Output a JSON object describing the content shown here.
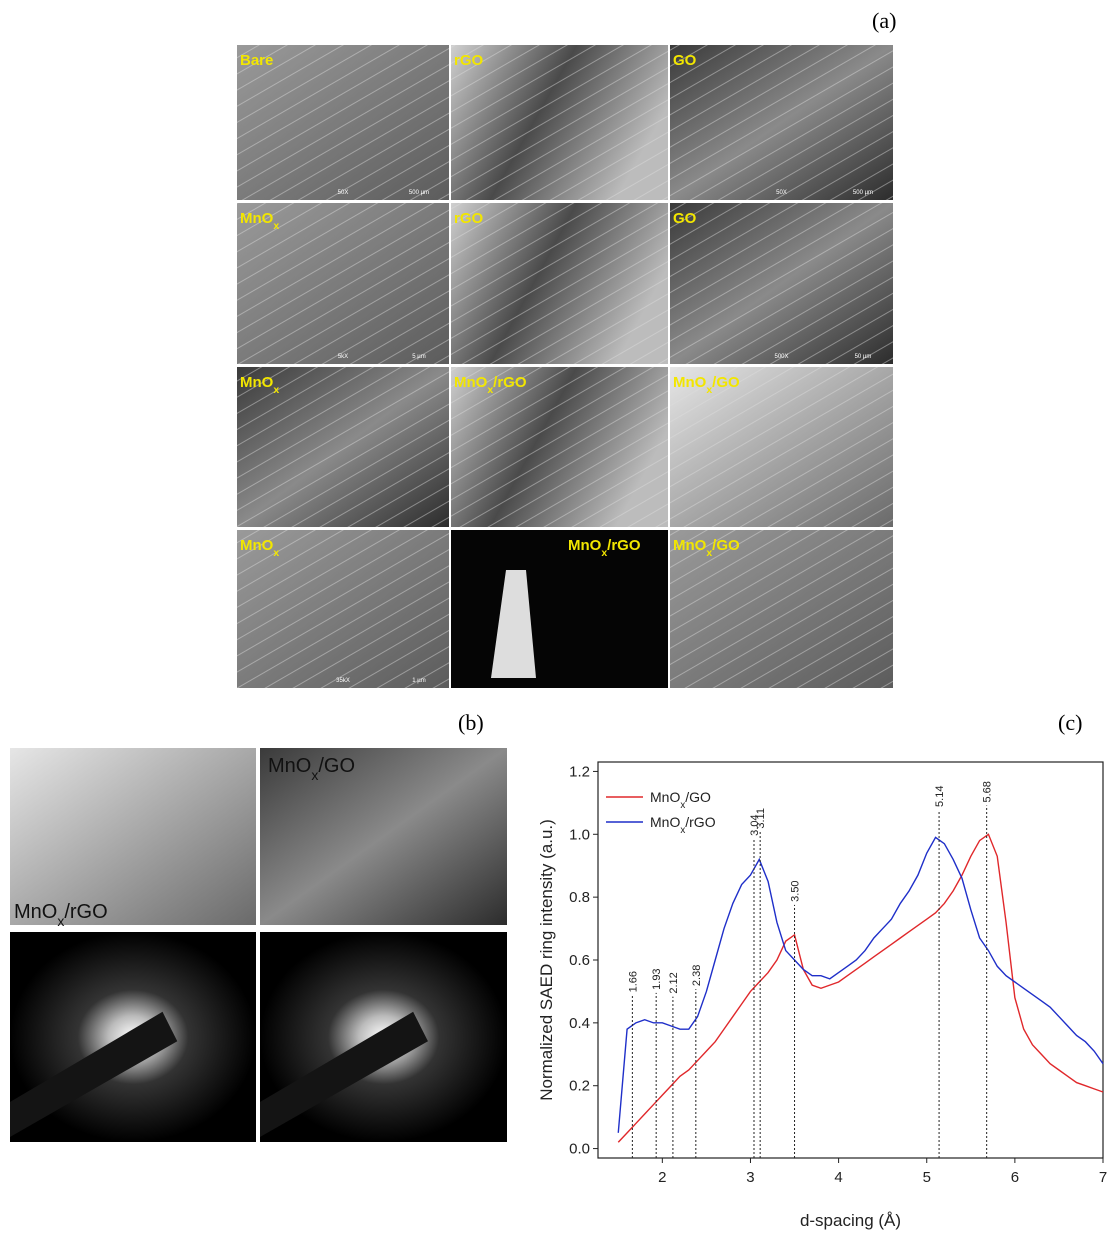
{
  "panel_a": {
    "label": "(a)",
    "images": [
      {
        "label": "Bare",
        "mag": "50X",
        "scale": "500 µm"
      },
      {
        "label": "rGO"
      },
      {
        "label": "GO",
        "mag": "50X",
        "scale": "500 µm"
      },
      {
        "label": "MnOx",
        "mag": "5kX",
        "scale": "5 µm"
      },
      {
        "label": "rGO"
      },
      {
        "label": "GO",
        "mag": "500X",
        "scale": "50 µm"
      },
      {
        "label": "MnOx"
      },
      {
        "label": "MnOx/rGO"
      },
      {
        "label": "MnOx/GO"
      },
      {
        "label": "MnOx",
        "mag": "35kX",
        "scale": "1 µm"
      },
      {
        "label": "MnOx/rGO"
      },
      {
        "label": "MnOx/GO"
      }
    ]
  },
  "panel_b": {
    "label": "(b)",
    "images": [
      {
        "label": "MnOx/rGO"
      },
      {
        "label": "MnOx/GO"
      }
    ]
  },
  "panel_c": {
    "label": "(c)"
  },
  "chart_data": {
    "type": "line",
    "x_label": "d-spacing (Å)",
    "y_label": "Normalized SAED ring intensity (a.u.)",
    "xlim": [
      1.27,
      7
    ],
    "ylim": [
      -0.03,
      1.23
    ],
    "xticks": [
      2,
      3,
      4,
      5,
      6,
      7
    ],
    "yticks": [
      {
        "value": 0,
        "label": "0.0"
      },
      0.2,
      0.4,
      0.6,
      0.8,
      {
        "value": 1,
        "label": "1.0"
      },
      1.2
    ],
    "legend": "upper-left",
    "peaks": [
      1.66,
      1.93,
      2.12,
      2.38,
      3.04,
      3.11,
      {
        "value": 3.5,
        "label": "3.50"
      },
      5.14,
      5.68
    ],
    "x": [
      1.5,
      1.6,
      1.7,
      1.8,
      1.9,
      2.0,
      2.1,
      2.2,
      2.3,
      2.4,
      2.5,
      2.6,
      2.7,
      2.8,
      2.9,
      3.0,
      3.1,
      3.2,
      3.3,
      3.4,
      3.5,
      3.6,
      3.7,
      3.8,
      3.9,
      4.0,
      4.1,
      4.2,
      4.3,
      4.4,
      4.5,
      4.6,
      4.7,
      4.8,
      4.9,
      5.0,
      5.1,
      5.2,
      5.3,
      5.4,
      5.5,
      5.6,
      5.7,
      5.8,
      5.9,
      6.0,
      6.1,
      6.2,
      6.3,
      6.4,
      6.5,
      6.6,
      6.7,
      6.8,
      6.9,
      7.0
    ],
    "series": [
      {
        "name": "MnOx/GO",
        "color": "#e0282b",
        "values": [
          0.02,
          0.05,
          0.08,
          0.11,
          0.14,
          0.17,
          0.2,
          0.23,
          0.25,
          0.28,
          0.31,
          0.34,
          0.38,
          0.42,
          0.46,
          0.5,
          0.53,
          0.56,
          0.6,
          0.66,
          0.68,
          0.57,
          0.52,
          0.51,
          0.52,
          0.53,
          0.55,
          0.57,
          0.59,
          0.61,
          0.63,
          0.65,
          0.67,
          0.69,
          0.71,
          0.73,
          0.75,
          0.78,
          0.82,
          0.87,
          0.93,
          0.98,
          1.0,
          0.93,
          0.72,
          0.48,
          0.38,
          0.33,
          0.3,
          0.27,
          0.25,
          0.23,
          0.21,
          0.2,
          0.19,
          0.18
        ]
      },
      {
        "name": "MnOx/rGO",
        "color": "#1f2fc9",
        "values": [
          0.05,
          0.38,
          0.4,
          0.41,
          0.4,
          0.4,
          0.39,
          0.38,
          0.38,
          0.42,
          0.5,
          0.6,
          0.7,
          0.78,
          0.84,
          0.87,
          0.92,
          0.85,
          0.72,
          0.63,
          0.6,
          0.57,
          0.55,
          0.55,
          0.54,
          0.56,
          0.58,
          0.6,
          0.63,
          0.67,
          0.7,
          0.73,
          0.78,
          0.82,
          0.87,
          0.94,
          0.99,
          0.97,
          0.92,
          0.86,
          0.76,
          0.67,
          0.63,
          0.58,
          0.55,
          0.53,
          0.51,
          0.49,
          0.47,
          0.45,
          0.42,
          0.39,
          0.36,
          0.34,
          0.31,
          0.27
        ]
      }
    ]
  }
}
